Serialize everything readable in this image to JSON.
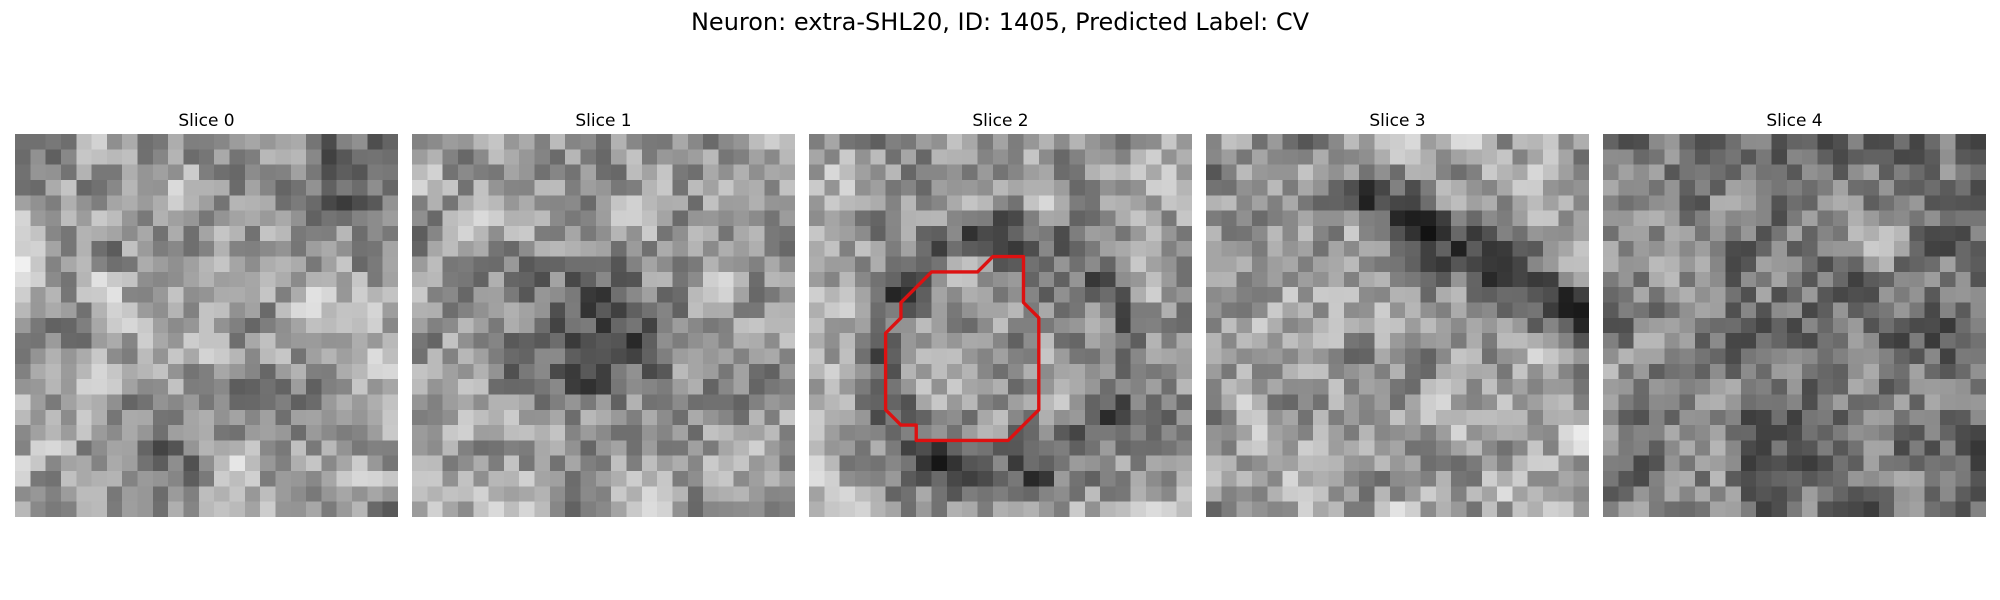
{
  "figure": {
    "title": "Neuron: extra-SHL20, ID: 1405, Predicted Label: CV"
  },
  "panels": [
    {
      "title": "Slice 0"
    },
    {
      "title": "Slice 1"
    },
    {
      "title": "Slice 2"
    },
    {
      "title": "Slice 3"
    },
    {
      "title": "Slice 4"
    }
  ],
  "contour": {
    "color": "#dd1111",
    "slice_index": 2,
    "points": [
      [
        14,
        9
      ],
      [
        14,
        8
      ],
      [
        12,
        8
      ],
      [
        11,
        9
      ],
      [
        8,
        9
      ],
      [
        6,
        11
      ],
      [
        6,
        12
      ],
      [
        5,
        13
      ],
      [
        5,
        18
      ],
      [
        6,
        19
      ],
      [
        7,
        19
      ],
      [
        7,
        20
      ],
      [
        13,
        20
      ],
      [
        14,
        19
      ],
      [
        15,
        18
      ],
      [
        15,
        12
      ],
      [
        14,
        11
      ],
      [
        14,
        9
      ]
    ]
  }
}
